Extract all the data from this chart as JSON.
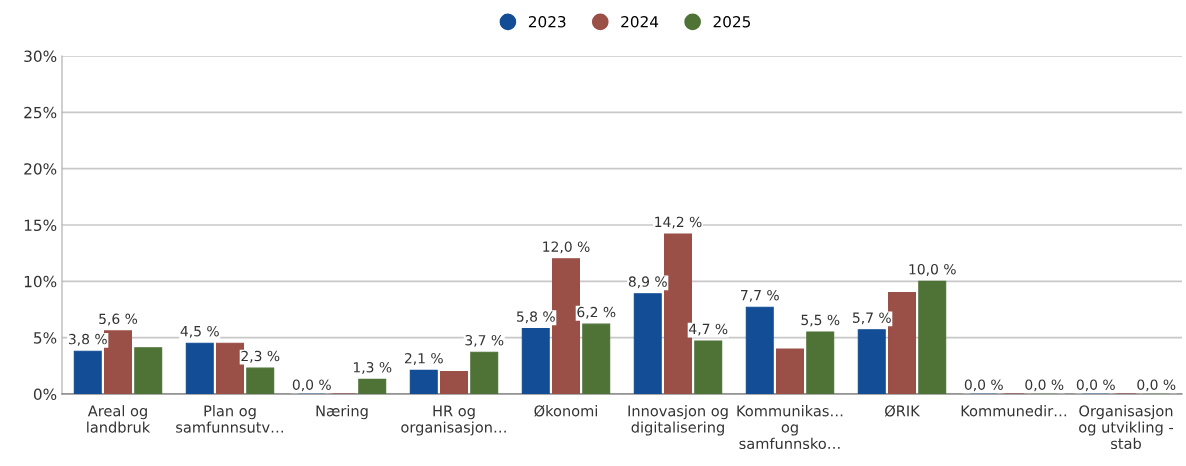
{
  "chart_data": {
    "type": "bar",
    "categories": [
      "Areal og\nlandbruk",
      "Plan og\nsamfunnsutv…",
      "Næring",
      "HR og\norganisasjon…",
      "Økonomi",
      "Innovasjon og\ndigitalisering",
      "Kommunikas…\nog\nsamfunnsko…",
      "ØRIK",
      "Kommunedir…",
      "Organisasjon\nog utvikling -\nstab"
    ],
    "series": [
      {
        "name": "2023",
        "color": "#134d95",
        "values": [
          3.8,
          4.5,
          0.0,
          2.1,
          5.8,
          8.9,
          7.7,
          5.7,
          0.0,
          0.0
        ],
        "value_labels": [
          "3,8 %",
          "4,5 %",
          "0,0 %",
          "2,1 %",
          "5,8 %",
          "8,9 %",
          "7,7 %",
          "5,7 %",
          "0,0 %",
          "0,0 %"
        ]
      },
      {
        "name": "2024",
        "color": "#9a4f47",
        "values": [
          5.6,
          4.5,
          0.0,
          2.0,
          12.0,
          14.2,
          4.0,
          9.0,
          0.0,
          0.0
        ],
        "value_labels": [
          "5,6 %",
          null,
          null,
          null,
          "12,0 %",
          "14,2 %",
          null,
          null,
          null,
          null
        ]
      },
      {
        "name": "2025",
        "color": "#4f7337",
        "values": [
          4.1,
          2.3,
          1.3,
          3.7,
          6.2,
          4.7,
          5.5,
          10.0,
          0.0,
          0.0
        ],
        "value_labels": [
          null,
          "2,3 %",
          "1,3 %",
          "3,7 %",
          "6,2 %",
          "4,7 %",
          "5,5 %",
          "10,0 %",
          "0,0 %",
          "0,0 %"
        ]
      }
    ],
    "ylim": [
      0,
      30
    ],
    "yticks": [
      {
        "value": 0,
        "label": "0%"
      },
      {
        "value": 5,
        "label": "5%"
      },
      {
        "value": 10,
        "label": "10%"
      },
      {
        "value": 15,
        "label": "15%"
      },
      {
        "value": 20,
        "label": "20%"
      },
      {
        "value": 25,
        "label": "25%"
      },
      {
        "value": 30,
        "label": "30%"
      }
    ],
    "grid": "y",
    "legend": "top"
  }
}
